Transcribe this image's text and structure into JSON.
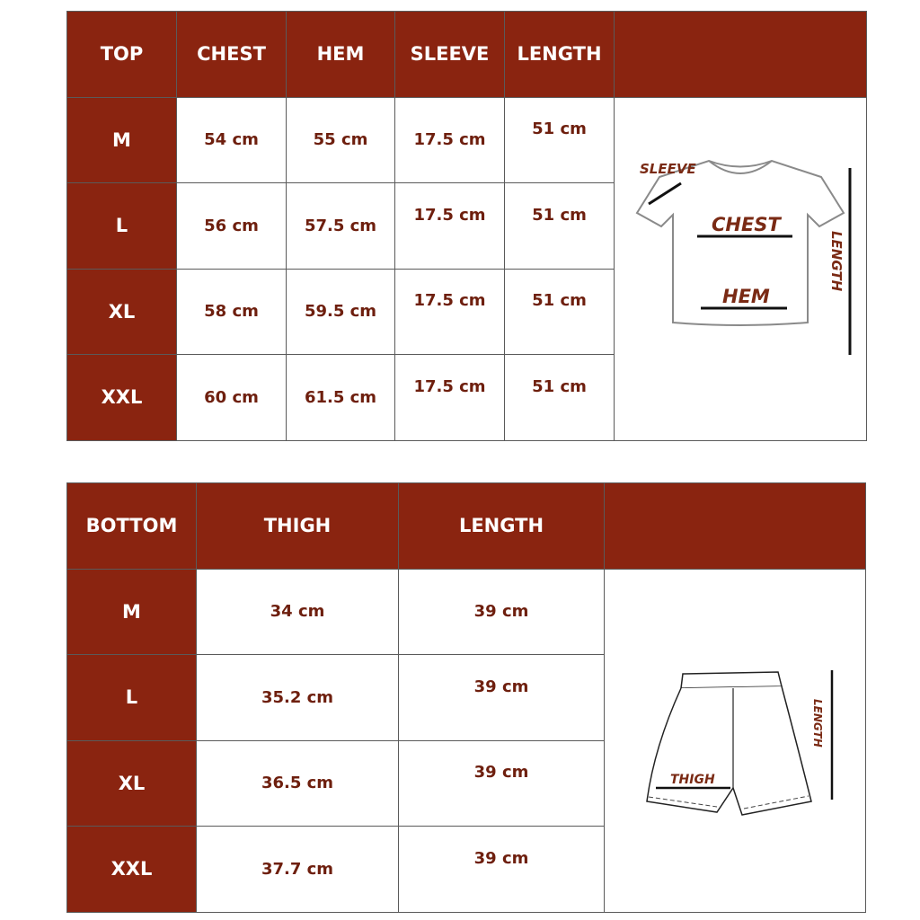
{
  "top": {
    "headers": [
      "TOP",
      "CHEST",
      "HEM",
      "SLEEVE",
      "LENGTH",
      ""
    ],
    "rows": [
      {
        "size": "M",
        "chest": "54 cm",
        "hem": "55 cm",
        "sleeve": "17.5 cm",
        "length": "51 cm"
      },
      {
        "size": "L",
        "chest": "56 cm",
        "hem": "57.5 cm",
        "sleeve": "17.5 cm",
        "length": "51 cm"
      },
      {
        "size": "XL",
        "chest": "58 cm",
        "hem": "59.5 cm",
        "sleeve": "17.5 cm",
        "length": "51 cm"
      },
      {
        "size": "XXL",
        "chest": "60 cm",
        "hem": "61.5 cm",
        "sleeve": "17.5 cm",
        "length": "51 cm"
      }
    ],
    "diagram_labels": {
      "sleeve": "SLEEVE",
      "chest": "CHEST",
      "hem": "HEM",
      "length": "LENGTH"
    }
  },
  "bottom": {
    "headers": [
      "BOTTOM",
      "THIGH",
      "LENGTH",
      ""
    ],
    "rows": [
      {
        "size": "M",
        "thigh": "34 cm",
        "length": "39 cm"
      },
      {
        "size": "L",
        "thigh": "35.2 cm",
        "length": "39 cm"
      },
      {
        "size": "XL",
        "thigh": "36.5 cm",
        "length": "39 cm"
      },
      {
        "size": "XXL",
        "thigh": "37.7 cm",
        "length": "39 cm"
      }
    ],
    "diagram_labels": {
      "thigh": "THIGH",
      "length": "LENGTH"
    }
  },
  "colors": {
    "header": "#8a2410",
    "value_text": "#6e1f0e"
  }
}
